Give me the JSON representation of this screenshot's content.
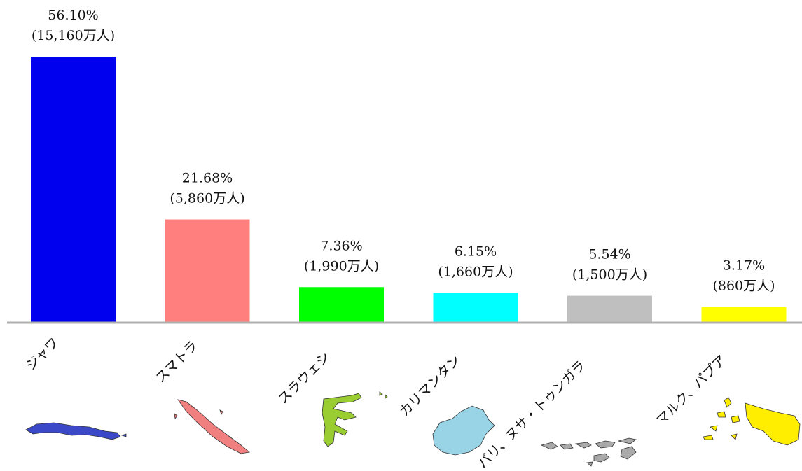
{
  "chart_data": {
    "type": "bar",
    "categories": [
      "ジャワ",
      "スマトラ",
      "スラウェシ",
      "カリマンタン",
      "バリ、ヌサ・トゥンガラ",
      "マルク、パプア"
    ],
    "values": [
      56.1,
      21.68,
      7.36,
      6.15,
      5.54,
      3.17
    ],
    "value_labels": [
      "56.10%",
      "21.68%",
      "7.36%",
      "6.15%",
      "5.54%",
      "3.17%"
    ],
    "population_labels": [
      "(15,160万人)",
      "(5,860万人)",
      "(1,990万人)",
      "(1,660万人)",
      "(1,500万人)",
      "(860万人)"
    ],
    "colors": [
      "#0000ee",
      "#ff7f7f",
      "#00ff00",
      "#00ffff",
      "#bfbfbf",
      "#ffff00"
    ],
    "region_icons": [
      "java-island-map-icon",
      "sumatra-island-map-icon",
      "sulawesi-island-map-icon",
      "kalimantan-island-map-icon",
      "nusa-tenggara-islands-map-icon",
      "maluku-papua-islands-map-icon"
    ],
    "icon_colors": [
      "#3b49c9",
      "#f07f7f",
      "#9acd32",
      "#99d3e6",
      "#a9a9a9",
      "#ffee00"
    ],
    "ylim": [
      0,
      56.1
    ],
    "grid": false,
    "legend": "none"
  }
}
